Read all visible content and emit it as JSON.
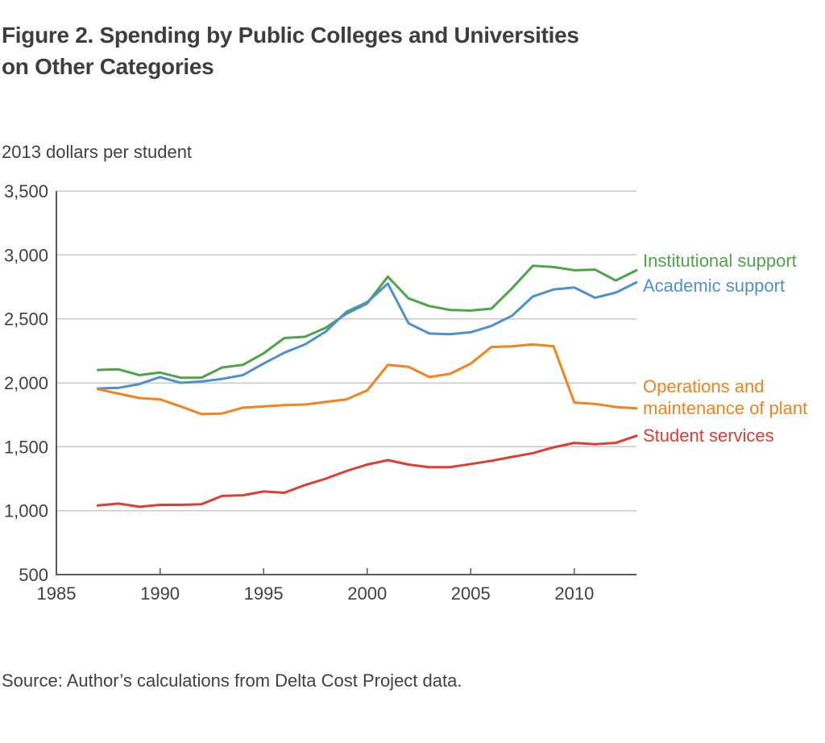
{
  "title_lines": [
    "Figure 2. Spending by Public Colleges and Universities",
    "on Other Categories"
  ],
  "units_label": "2013 dollars per student",
  "source_note": "Source: Author’s calculations from Delta Cost Project data.",
  "chart_data": {
    "type": "line",
    "title": "Figure 2. Spending by Public Colleges and Universities on Other Categories",
    "ylabel": "2013 dollars per student",
    "xlabel": "",
    "grid": "horizontal-only",
    "legend_position": "labels-at-right-end-of-lines",
    "xlim": [
      1985,
      2013
    ],
    "ylim": [
      500,
      3500
    ],
    "xticks": [
      1985,
      1990,
      1995,
      2000,
      2005,
      2010
    ],
    "yticks": [
      500,
      1000,
      1500,
      2000,
      2500,
      3000,
      3500
    ],
    "x": [
      1987,
      1988,
      1989,
      1990,
      1991,
      1992,
      1993,
      1994,
      1995,
      1996,
      1997,
      1998,
      1999,
      2000,
      2001,
      2002,
      2003,
      2004,
      2005,
      2006,
      2007,
      2008,
      2009,
      2010,
      2011,
      2012,
      2013
    ],
    "series": [
      {
        "name": "Institutional support",
        "color": "#4FA44A",
        "values": [
          2100,
          2105,
          2060,
          2080,
          2040,
          2040,
          2120,
          2140,
          2230,
          2350,
          2360,
          2430,
          2540,
          2620,
          2830,
          2660,
          2600,
          2570,
          2565,
          2580,
          2740,
          2915,
          2905,
          2880,
          2885,
          2800,
          2880
        ]
      },
      {
        "name": "Academic support",
        "color": "#4E90CC",
        "values": [
          1955,
          1960,
          1990,
          2045,
          2000,
          2010,
          2030,
          2060,
          2150,
          2235,
          2300,
          2400,
          2555,
          2630,
          2775,
          2465,
          2385,
          2380,
          2395,
          2445,
          2525,
          2675,
          2730,
          2745,
          2665,
          2705,
          2785
        ]
      },
      {
        "name": "Operations and maintenance of plant",
        "color": "#F5821F",
        "values": [
          1950,
          1915,
          1880,
          1870,
          1815,
          1755,
          1760,
          1805,
          1815,
          1825,
          1830,
          1850,
          1870,
          1940,
          2140,
          2125,
          2045,
          2070,
          2150,
          2280,
          2285,
          2300,
          2285,
          1845,
          1835,
          1810,
          1800
        ]
      },
      {
        "name": "Student services",
        "color": "#E03C31",
        "values": [
          1040,
          1055,
          1030,
          1045,
          1045,
          1050,
          1115,
          1120,
          1150,
          1140,
          1200,
          1250,
          1310,
          1360,
          1395,
          1360,
          1340,
          1340,
          1365,
          1390,
          1420,
          1450,
          1495,
          1530,
          1520,
          1530,
          1585
        ]
      }
    ]
  }
}
